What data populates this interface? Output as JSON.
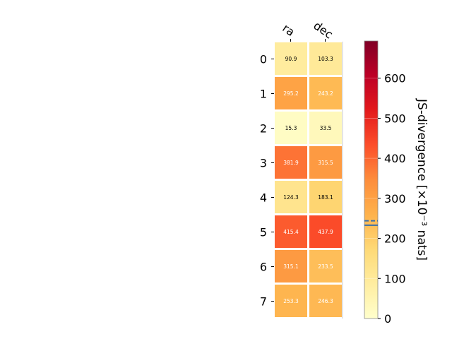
{
  "chart_data": {
    "type": "heatmap",
    "columns": [
      "ra",
      "dec"
    ],
    "rows": [
      "0",
      "1",
      "2",
      "3",
      "4",
      "5",
      "6",
      "7"
    ],
    "values": [
      [
        90.9,
        103.3
      ],
      [
        295.2,
        243.2
      ],
      [
        15.3,
        33.5
      ],
      [
        381.9,
        315.5
      ],
      [
        124.3,
        183.1
      ],
      [
        415.4,
        437.9
      ],
      [
        315.1,
        233.5
      ],
      [
        253.3,
        246.3
      ]
    ],
    "colorbar": {
      "label": "JS-divergence [×10⁻³ nats]",
      "range": [
        0,
        693
      ],
      "ticks": [
        0,
        100,
        200,
        300,
        400,
        500,
        600
      ],
      "colormap": "YlOrRd",
      "reference_lines": [
        {
          "value": 233.0,
          "style": "solid",
          "color": "#3a6fa8"
        },
        {
          "value": 244.0,
          "style": "dashed",
          "color": "#3a6fa8"
        }
      ]
    }
  }
}
